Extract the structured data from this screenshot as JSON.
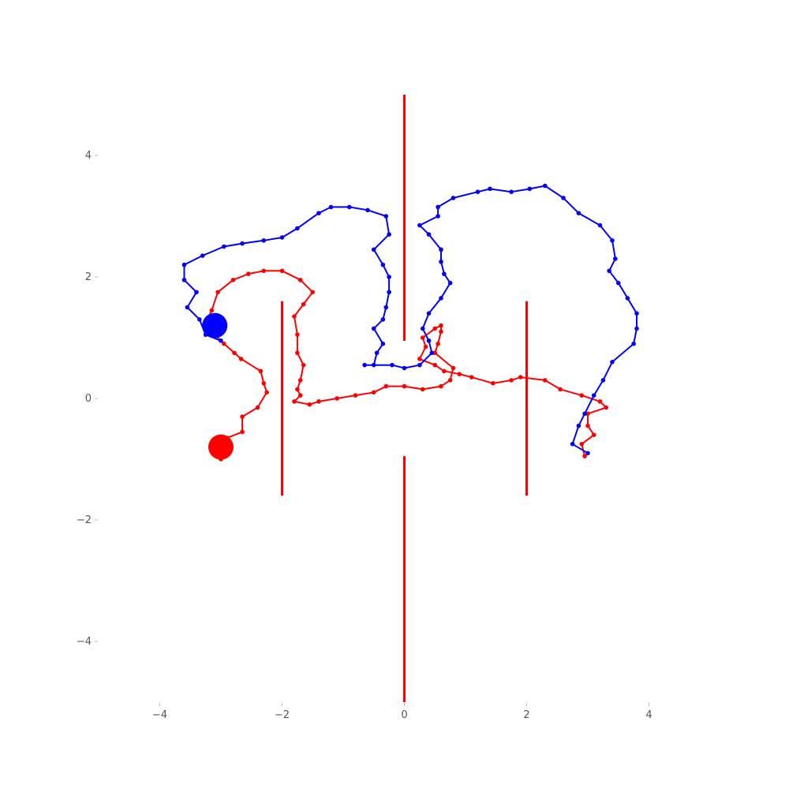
{
  "chart_data": {
    "type": "line",
    "title": "",
    "xlabel": "",
    "ylabel": "",
    "xlim": [
      -5,
      5
    ],
    "ylim": [
      -5,
      5
    ],
    "grid": false,
    "legend": "none",
    "x_ticks": [
      -4,
      -2,
      0,
      2,
      4
    ],
    "y_ticks": [
      4,
      2,
      0,
      -2,
      -4
    ],
    "x_tick_labels": [
      "−4",
      "−2",
      "0",
      "2",
      "4"
    ],
    "y_tick_labels": [
      "4",
      "2",
      "0",
      "−2",
      "−4"
    ],
    "walls": [
      {
        "x": [
          0,
          0
        ],
        "y": [
          5,
          0.95
        ]
      },
      {
        "x": [
          0,
          0
        ],
        "y": [
          -0.95,
          -5
        ]
      },
      {
        "x": [
          -2,
          -2
        ],
        "y": [
          1.6,
          -1.6
        ]
      },
      {
        "x": [
          2,
          2
        ],
        "y": [
          1.6,
          -1.6
        ]
      }
    ],
    "wall_color": "#ff0000",
    "series": [
      {
        "color": "#ff0000",
        "end_marker": {
          "x": -3.0,
          "y": -0.8
        },
        "x": [
          -3.0,
          -2.9,
          -2.65,
          -2.65,
          -2.4,
          -2.25,
          -2.3,
          -2.35,
          -2.67,
          -2.78,
          -2.95,
          -3.1,
          -3.25,
          -3.15,
          -3.05,
          -2.8,
          -2.55,
          -2.3,
          -2.0,
          -1.7,
          -1.5,
          -1.65,
          -1.8,
          -1.75,
          -1.75,
          -1.65,
          -1.7,
          -1.75,
          -1.7,
          -1.8,
          -1.55,
          -1.4,
          -1.1,
          -0.8,
          -0.5,
          -0.3,
          0.0,
          0.3,
          0.6,
          0.75,
          0.8,
          0.5,
          0.55,
          0.6,
          0.6,
          0.5,
          0.3,
          0.35,
          0.25,
          0.5,
          0.65,
          0.9,
          1.1,
          1.45,
          1.75,
          1.9,
          2.3,
          2.55,
          2.9,
          3.2,
          3.3,
          3.0,
          3.0,
          3.1,
          2.9,
          2.95
        ],
        "y": [
          -1.0,
          -0.65,
          -0.55,
          -0.3,
          -0.15,
          0.1,
          0.25,
          0.45,
          0.65,
          0.75,
          0.9,
          1.05,
          1.25,
          1.45,
          1.75,
          1.95,
          2.05,
          2.1,
          2.1,
          1.95,
          1.75,
          1.55,
          1.35,
          1.05,
          0.75,
          0.55,
          0.3,
          0.15,
          0.05,
          -0.05,
          -0.1,
          -0.05,
          0.0,
          0.05,
          0.1,
          0.2,
          0.2,
          0.15,
          0.2,
          0.3,
          0.5,
          0.75,
          0.9,
          1.1,
          1.2,
          1.15,
          1.0,
          0.85,
          0.65,
          0.55,
          0.45,
          0.4,
          0.35,
          0.25,
          0.3,
          0.35,
          0.3,
          0.15,
          0.05,
          -0.05,
          -0.15,
          -0.25,
          -0.45,
          -0.6,
          -0.75,
          -0.95
        ]
      },
      {
        "color": "#0000ff",
        "end_marker": {
          "x": -3.1,
          "y": 1.2
        },
        "x": [
          -3.0,
          -3.25,
          -3.35,
          -3.55,
          -3.4,
          -3.6,
          -3.6,
          -3.3,
          -2.95,
          -2.65,
          -2.3,
          -2.0,
          -1.75,
          -1.4,
          -1.2,
          -0.9,
          -0.6,
          -0.3,
          -0.25,
          -0.5,
          -0.35,
          -0.25,
          -0.25,
          -0.3,
          -0.35,
          -0.5,
          -0.35,
          -0.45,
          -0.5,
          -0.65,
          -0.2,
          0.0,
          0.25,
          0.45,
          0.4,
          0.3,
          0.4,
          0.6,
          0.75,
          0.65,
          0.6,
          0.6,
          0.4,
          0.25,
          0.55,
          0.55,
          0.8,
          1.2,
          1.4,
          1.75,
          2.05,
          2.3,
          2.6,
          2.85,
          3.2,
          3.4,
          3.45,
          3.35,
          3.5,
          3.65,
          3.8,
          3.8,
          3.75,
          3.4,
          3.25,
          3.1,
          2.95,
          2.85,
          2.75,
          3.0
        ],
        "y": [
          0.95,
          1.05,
          1.3,
          1.5,
          1.75,
          1.95,
          2.2,
          2.35,
          2.5,
          2.55,
          2.6,
          2.65,
          2.8,
          3.05,
          3.15,
          3.15,
          3.1,
          3.0,
          2.7,
          2.45,
          2.2,
          2.0,
          1.75,
          1.5,
          1.3,
          1.15,
          0.9,
          0.75,
          0.55,
          0.55,
          0.55,
          0.5,
          0.55,
          0.75,
          0.95,
          1.15,
          1.4,
          1.65,
          1.9,
          2.05,
          2.25,
          2.45,
          2.7,
          2.85,
          3.0,
          3.15,
          3.3,
          3.4,
          3.45,
          3.4,
          3.45,
          3.5,
          3.3,
          3.05,
          2.85,
          2.6,
          2.3,
          2.1,
          1.9,
          1.65,
          1.4,
          1.15,
          0.9,
          0.6,
          0.3,
          0.05,
          -0.25,
          -0.45,
          -0.75,
          -0.9
        ]
      }
    ]
  }
}
